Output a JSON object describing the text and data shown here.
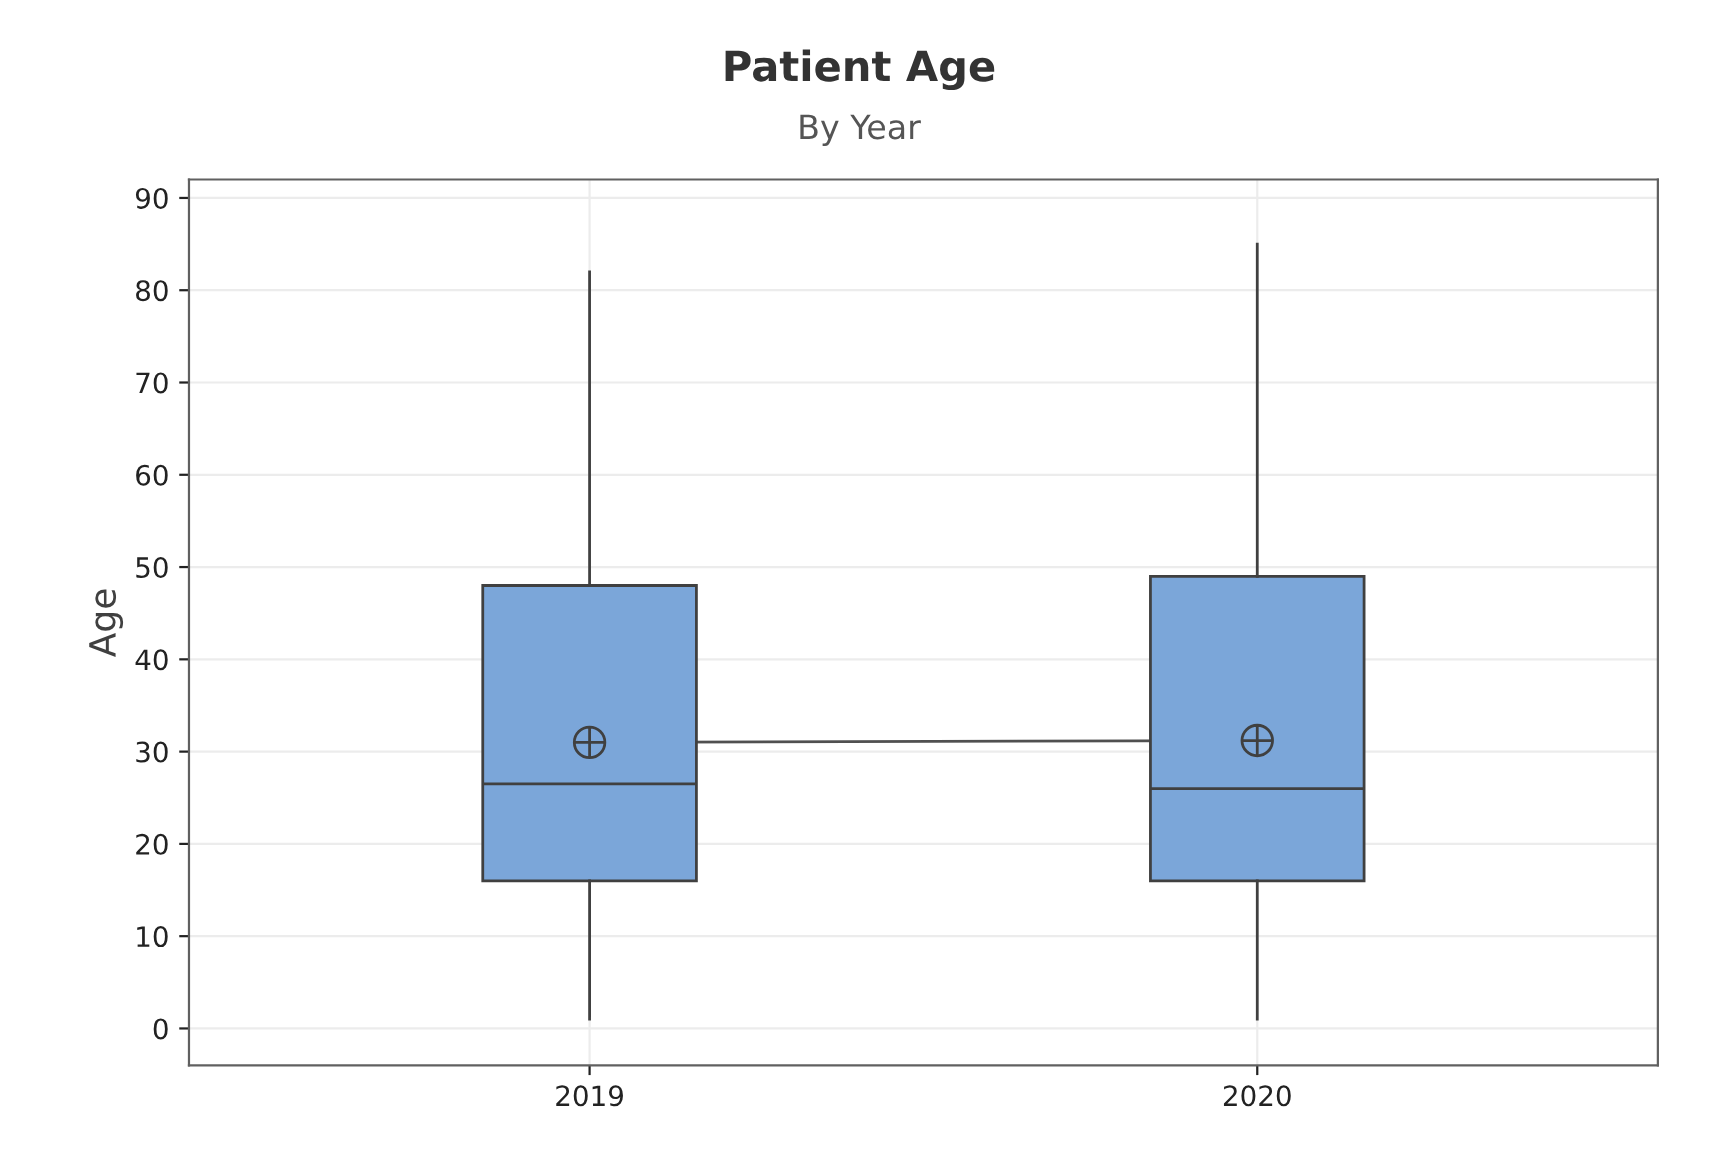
{
  "chart_data": {
    "type": "box",
    "title": "Patient Age",
    "subtitle": "By Year",
    "ylabel": "Age",
    "categories": [
      "2019",
      "2020"
    ],
    "boxes": [
      {
        "low": 1,
        "q1": 16,
        "median": 26.5,
        "q3": 48,
        "high": 82,
        "mean": 31
      },
      {
        "low": 1,
        "q1": 16,
        "median": 26,
        "q3": 49,
        "high": 85,
        "mean": 31.2
      }
    ],
    "color": "#7ba6d9",
    "series": [
      {
        "type": "line",
        "color": "#505050",
        "values": [
          31,
          31.2
        ]
      }
    ],
    "ylim": [
      -4,
      92
    ],
    "yticks": [
      0,
      10,
      20,
      30,
      40,
      50,
      60,
      70,
      80,
      90
    ],
    "grid": true
  }
}
